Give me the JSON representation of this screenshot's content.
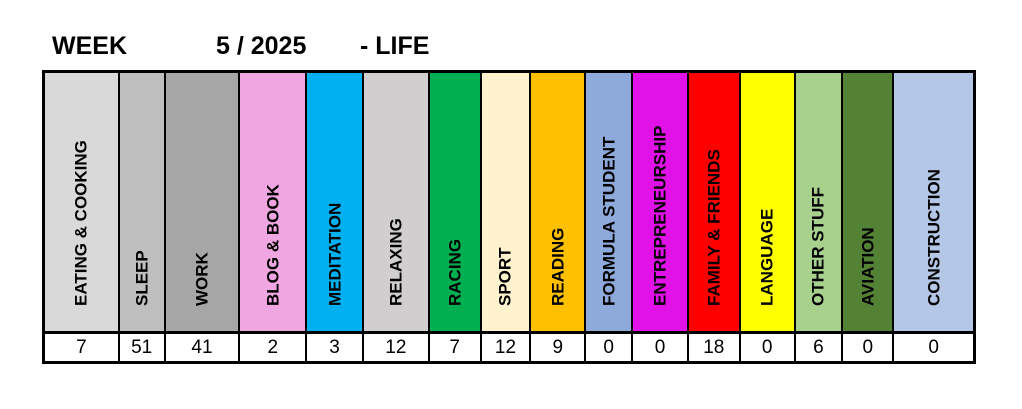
{
  "title": {
    "week_label": "WEEK",
    "week_value": "5 / 2025",
    "suffix": "- LIFE"
  },
  "categories": [
    {
      "label": "EATING & COOKING",
      "value": "7",
      "color": "#d9d9d9"
    },
    {
      "label": "SLEEP",
      "value": "51",
      "color": "#bfbfbf"
    },
    {
      "label": "WORK",
      "value": "41",
      "color": "#a6a6a6"
    },
    {
      "label": "BLOG & BOOK",
      "value": "2",
      "color": "#f0a6e0"
    },
    {
      "label": "MEDITATION",
      "value": "3",
      "color": "#00b0f0"
    },
    {
      "label": "RELAXING",
      "value": "12",
      "color": "#d0cece"
    },
    {
      "label": "RACING",
      "value": "7",
      "color": "#00b050"
    },
    {
      "label": "SPORT",
      "value": "12",
      "color": "#fff2cc"
    },
    {
      "label": "READING",
      "value": "9",
      "color": "#ffc000"
    },
    {
      "label": "FORMULA STUDENT",
      "value": "0",
      "color": "#8eaadb"
    },
    {
      "label": "ENTREPRENEURSHIP",
      "value": "0",
      "color": "#e012e8"
    },
    {
      "label": "FAMILY & FRIENDS",
      "value": "18",
      "color": "#ff0000"
    },
    {
      "label": "LANGUAGE",
      "value": "0",
      "color": "#ffff00"
    },
    {
      "label": "OTHER STUFF",
      "value": "6",
      "color": "#a9d18e"
    },
    {
      "label": "AVIATION",
      "value": "0",
      "color": "#548235"
    },
    {
      "label": "CONSTRUCTION",
      "value": "0",
      "color": "#b4c7e7"
    }
  ]
}
